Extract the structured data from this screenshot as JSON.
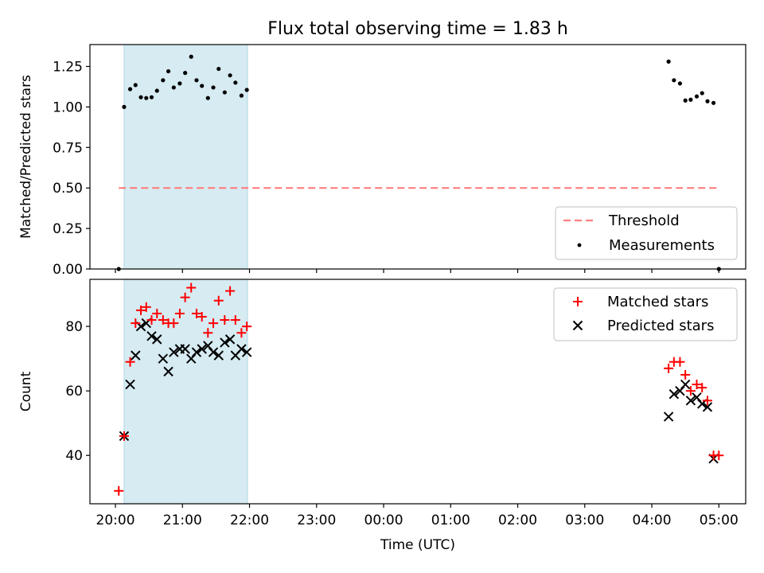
{
  "title": "Flux total observing time = 1.83 h",
  "xlabel": "Time (UTC)",
  "colors": {
    "shade": "#add8e6",
    "threshold": "#ff7f7f",
    "matched": "#ff0000",
    "predicted": "#000000",
    "measurement": "#000000"
  },
  "chart_data": [
    {
      "type": "scatter",
      "ylabel": "Matched/Predicted stars",
      "x_unit": "hours after 20:00 UTC",
      "xlim": [
        -0.38,
        9.4
      ],
      "ylim": [
        0.0,
        1.385
      ],
      "y_ticks": [
        0.0,
        0.25,
        0.5,
        0.75,
        1.0,
        1.25
      ],
      "y_tick_labels": [
        "0.00",
        "0.25",
        "0.50",
        "0.75",
        "1.00",
        "1.25"
      ],
      "shaded_interval": [
        0.13,
        1.97
      ],
      "legend": {
        "position": "lower right",
        "entries": [
          "Threshold",
          "Measurements"
        ]
      },
      "threshold": {
        "name": "Threshold",
        "y": 0.5,
        "x": [
          0.05,
          9.0
        ]
      },
      "series": [
        {
          "name": "Measurements",
          "x": [
            0.05,
            0.13,
            0.22,
            0.3,
            0.38,
            0.46,
            0.54,
            0.62,
            0.71,
            0.79,
            0.87,
            0.96,
            1.04,
            1.13,
            1.21,
            1.29,
            1.38,
            1.46,
            1.54,
            1.63,
            1.71,
            1.79,
            1.88,
            1.96,
            8.25,
            8.33,
            8.42,
            8.5,
            8.58,
            8.67,
            8.75,
            8.83,
            8.92,
            9.0
          ],
          "y": [
            0.0,
            1.0,
            1.11,
            1.135,
            1.06,
            1.055,
            1.06,
            1.1,
            1.165,
            1.22,
            1.12,
            1.145,
            1.21,
            1.31,
            1.165,
            1.13,
            1.055,
            1.12,
            1.235,
            1.09,
            1.195,
            1.15,
            1.07,
            1.105,
            1.28,
            1.165,
            1.145,
            1.04,
            1.045,
            1.065,
            1.085,
            1.035,
            1.025,
            0.0
          ]
        }
      ]
    },
    {
      "type": "scatter",
      "ylabel": "Count",
      "x_unit": "hours after 20:00 UTC",
      "xlim": [
        -0.38,
        9.4
      ],
      "ylim": [
        25.0,
        94.6
      ],
      "y_ticks": [
        40,
        60,
        80
      ],
      "y_tick_labels": [
        "40",
        "60",
        "80"
      ],
      "x_ticks": [
        0,
        1,
        2,
        3,
        4,
        5,
        6,
        7,
        8,
        9
      ],
      "x_tick_labels": [
        "20:00",
        "21:00",
        "22:00",
        "23:00",
        "00:00",
        "01:00",
        "02:00",
        "03:00",
        "04:00",
        "05:00"
      ],
      "shaded_interval": [
        0.13,
        1.97
      ],
      "legend": {
        "position": "upper right",
        "entries": [
          "Matched stars",
          "Predicted stars"
        ]
      },
      "series": [
        {
          "name": "Matched stars",
          "marker": "+",
          "x": [
            0.05,
            0.13,
            0.22,
            0.3,
            0.38,
            0.46,
            0.54,
            0.62,
            0.71,
            0.79,
            0.87,
            0.96,
            1.04,
            1.13,
            1.21,
            1.29,
            1.38,
            1.46,
            1.54,
            1.63,
            1.71,
            1.79,
            1.88,
            1.96,
            8.25,
            8.33,
            8.42,
            8.5,
            8.58,
            8.67,
            8.75,
            8.83,
            8.92,
            9.0
          ],
          "y": [
            29,
            46,
            69,
            81,
            85,
            86,
            82,
            84,
            82,
            81,
            81,
            84,
            89,
            92,
            84,
            83,
            78,
            81,
            88,
            82,
            91,
            82,
            78,
            80,
            67,
            69,
            69,
            65,
            60,
            62,
            61,
            57,
            40,
            40
          ]
        },
        {
          "name": "Predicted stars",
          "marker": "x",
          "x": [
            0.13,
            0.22,
            0.3,
            0.38,
            0.46,
            0.54,
            0.62,
            0.71,
            0.79,
            0.87,
            0.96,
            1.04,
            1.13,
            1.21,
            1.29,
            1.38,
            1.46,
            1.54,
            1.63,
            1.71,
            1.79,
            1.88,
            1.96,
            8.25,
            8.33,
            8.42,
            8.5,
            8.58,
            8.67,
            8.75,
            8.83,
            8.92
          ],
          "y": [
            46,
            62,
            71,
            80,
            81,
            77,
            76,
            70,
            66,
            72,
            73,
            73,
            70,
            72,
            73,
            74,
            72,
            71,
            75,
            76,
            71,
            73,
            72,
            52,
            59,
            60,
            62,
            57,
            58,
            56,
            55,
            39
          ]
        }
      ]
    }
  ]
}
